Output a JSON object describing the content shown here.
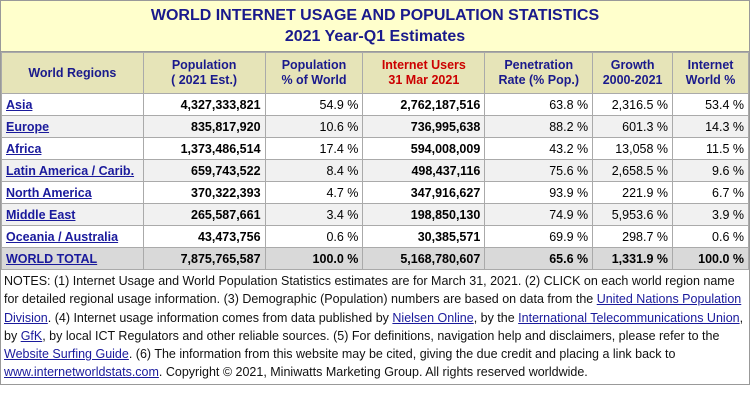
{
  "title": {
    "line1": "WORLD INTERNET USAGE AND POPULATION STATISTICS",
    "line2": "2021 Year-Q1 Estimates"
  },
  "table": {
    "headers": [
      [
        "World Regions"
      ],
      [
        "Population",
        "( 2021 Est.)"
      ],
      [
        "Population",
        "% of World"
      ],
      [
        "Internet Users",
        "31 Mar 2021"
      ],
      [
        "Penetration",
        "Rate (% Pop.)"
      ],
      [
        "Growth",
        "2000-2021"
      ],
      [
        "Internet",
        "World %"
      ]
    ],
    "rows": [
      [
        "Asia",
        "4,327,333,821",
        "54.9 %",
        "2,762,187,516",
        "63.8 %",
        "2,316.5 %",
        "53.4 %"
      ],
      [
        "Europe",
        "835,817,920",
        "10.6 %",
        "736,995,638",
        "88.2 %",
        "601.3 %",
        "14.3 %"
      ],
      [
        "Africa",
        "1,373,486,514",
        "17.4 %",
        "594,008,009",
        "43.2 %",
        "13,058 %",
        "11.5 %"
      ],
      [
        "Latin America / Carib.",
        "659,743,522",
        "8.4 %",
        "498,437,116",
        "75.6 %",
        "2,658.5 %",
        "9.6 %"
      ],
      [
        "North America",
        "370,322,393",
        "4.7 %",
        "347,916,627",
        "93.9 %",
        "221.9 %",
        "6.7 %"
      ],
      [
        "Middle East",
        "265,587,661",
        "3.4 %",
        "198,850,130",
        "74.9 %",
        "5,953.6 %",
        "3.9 %"
      ],
      [
        "Oceania / Australia",
        "43,473,756",
        "0.6 %",
        "30,385,571",
        "69.9 %",
        "298.7 %",
        "0.6 %"
      ]
    ],
    "total": [
      "WORLD TOTAL",
      "7,875,765,587",
      "100.0 %",
      "5,168,780,607",
      "65.6 %",
      "1,331.9 %",
      "100.0 %"
    ]
  },
  "notes": [
    "NOTES: (1) Internet Usage and World Population Statistics estimates are for March 31, 2021. (2) CLICK on each world region name for detailed regional usage information. (3) Demographic (Population) numbers are based on data from the ",
    {
      "link": "United Nations Population Division"
    },
    ". (4) Internet usage information comes from data published by ",
    {
      "link": "Nielsen Online"
    },
    ", by the ",
    {
      "link": "International Telecommunications Union"
    },
    ", by ",
    {
      "link": "GfK"
    },
    ", by local ICT Regulators and other reliable sources. (5) For definitions, navigation help and disclaimers, please refer to the ",
    {
      "link": "Website Surfing Guide"
    },
    ". (6) The information from this website may be cited, giving the due credit and placing a link back to ",
    {
      "link": "www.internetworldstats.com"
    },
    ". Copyright © 2021, Miniwatts Marketing Group. All rights reserved worldwide."
  ]
}
